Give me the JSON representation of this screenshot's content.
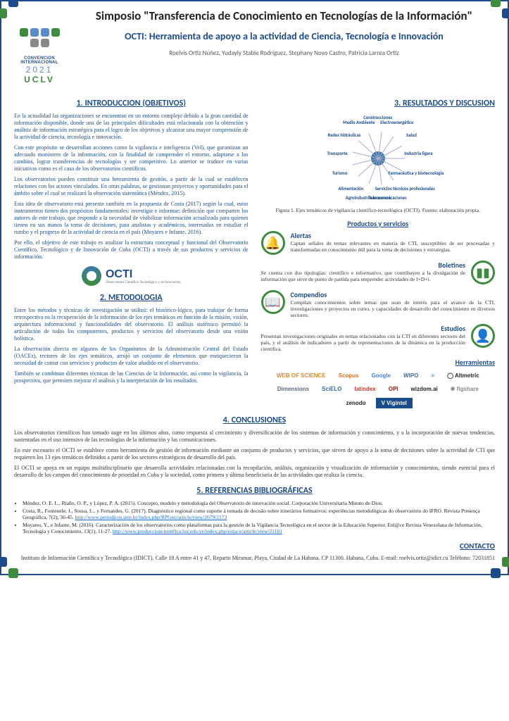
{
  "logo": {
    "conv_label": "CONVENCION\nINTERNACIONAL",
    "year": "2021",
    "acr": "UCLV",
    "colors": [
      "#3d8b3d",
      "#5a8cc7",
      "#3d8b3d",
      "#5a8cc7",
      "#888",
      "#888"
    ]
  },
  "title": "Simposio \"Transferencia de Conocimiento en Tecnologías de la Información\"",
  "subtitle": "OCTI: Herramienta de apoyo a la actividad de Ciencia, Tecnología e Innovación",
  "authors": "Roelvis Ortiz Núñez, Yudayly Stable Rodríguez, Stephany Novo Castro, Patricia Larrea Ortiz",
  "sections": {
    "intro_title": "1. INTRODUCCION (OBJETIVOS)",
    "intro_paras": [
      "En la actualidad las organizaciones se encuentran en un entorno complejo debido a la gran cantidad de información disponible, donde una de las principales dificultades está relacionada con la obtención y análisis de información estratégica para el logro de los objetivos y alcanzar una mayor comprensión de la actividad de ciencia, tecnología e innovación.",
      "Con este propósito se desarrollan acciones como la vigilancia e inteligencia (VeI), que garantizan un adecuado monitoreo de la información, con la finalidad de comprender el entorno, adaptarse a los cambios, lograr transferencias de tecnologías y ser competitivo. Lo anterior se traduce en varias iniciativas como es el caso de los observatorios científicos.",
      "Los observatorios pueden constituir una herramienta de gestión, a partir de la cual se establecen relaciones con los actores vinculados. En otras palabras, se gestionan proyectos y oportunidades para el ámbito sobre el cual se realizará la observación sistemática (Méndez, 2015).",
      "Esta idea de observatorio está presente también en la propuesta de Costa (2017) según la cual, estos instrumentos tienen dos propósitos fundamentales: investigar e informar; definición que comparten los autores de este trabajo, que responde a la necesidad de visibilizar información actualizada para quienes tienen en sus manos la toma de decisiones, para analistas y académicos, interesados en estudiar el rumbo y el progreso de la actividad de ciencia en el país (Moyares e Infante, 2016).",
      "Por ello, el objetivo de este trabajo es analizar la estructura conceptual y funcional del Observatorio Científico, Tecnológico y de Innovación de Cuba (OCTI) a través de sus productos y servicios de información."
    ],
    "octi_label": "OCTI",
    "octi_sublabel": "Observatorio Científico\nTecnológico y de Innovación",
    "metod_title": "2. METODOLOGIA",
    "metod_paras": [
      "Entre los métodos y técnicas de investigación se utilizó: el histórico-lógico, para trabajar de forma retrospectiva en la recuperación de la información de los ejes temáticos en función de la misión, visión, arquitectura informacional y funcionalidades del observatorio. El análisis sistémico permitió la articulación de todos los componentes, productos y servicios del observatorio desde una visión holística.",
      "La observación directa en algunos de los Organismos de la Administración Central del Estado (OACEs), rectores de los ejes temáticos, arrojó un conjunto de elementos que enriquecieron la necesidad de contar con servicios y productos de valor añadido en el observatorio.",
      "También se combinan diferentes técnicas de las Ciencias de la Información, así como la vigilancia, la prospectiva, que permiten mejorar el análisis y la interpretación de los resultados."
    ],
    "result_title": "3. RESULTADOS Y DISCUSION",
    "wheel_labels": [
      "Construcciones",
      "Electroenergético",
      "Salud",
      "Industria ligera",
      "Farmacéutica y biotecnología",
      "Servicios técnicos profesionales",
      "Telecomunicaciones",
      "Agroindustria azucarera",
      "Alimentación",
      "Turismo",
      "Transporte",
      "Redes hidráulicas",
      "Medio Ambiente"
    ],
    "fig_caption": "Figura 1. Ejes temáticos de vigilancia científico-tecnológica (OCTI). Fuente: elaboración propia.",
    "prod_title": "Productos y servicios",
    "products": [
      {
        "title": "Alertas",
        "icon": "🔔",
        "text": "Captan señales de temas relevantes en materia de CTI, susceptibles de ser procesadas y transformadas en conocimiento útil para la toma de decisiones y estrategias."
      },
      {
        "title": "Boletines",
        "icon": "▮▮",
        "text": "Se cuenta con dos tipologías: científico e informativo, que contribuyen a la divulgación de información que sirve de punto de partida para emprender actividades de I+D+i."
      },
      {
        "title": "Compendios",
        "icon": "📖",
        "text": "Compilan conocimientos sobre temas que sean de interés para el avance de la CTI, investigaciones y proyectos en curso, y capacidades de desarrollo del conocimiento en diversos sectores."
      },
      {
        "title": "Estudios",
        "icon": "👤",
        "text": "Presentan investigaciones originales en temas relacionados con la CTI en diferentes sectores del país, y el análisis de indicadores a partir de representaciones de la dinámica en la producción científica."
      }
    ],
    "tools_title": "Herramientas",
    "tools": [
      {
        "name": "WEB OF SCIENCE",
        "color": "#d98b2e"
      },
      {
        "name": "Scopus",
        "color": "#e36e1a"
      },
      {
        "name": "Google",
        "color": "#4285f4"
      },
      {
        "name": "WIPO",
        "color": "#3a6ea5"
      },
      {
        "name": "≡",
        "color": "#3a7aa8"
      },
      {
        "name": "◯ Altmetric",
        "color": "#222"
      },
      {
        "name": "Dimensions",
        "color": "#5d6d7e"
      },
      {
        "name": "SciELO",
        "color": "#3a6ea5"
      },
      {
        "name": "latindex",
        "color": "#c0392b"
      },
      {
        "name": "OPI",
        "color": "#8b1a1a"
      },
      {
        "name": "wizdom.ai",
        "color": "#222"
      },
      {
        "name": "❋ figshare",
        "color": "#888"
      },
      {
        "name": "zenodo",
        "color": "#222"
      },
      {
        "name": "V Vigintel",
        "color": "#fff",
        "bg": "#1a4b8c"
      }
    ],
    "concl_title": "4. CONCLUSIONES",
    "concl_paras": [
      "Los observatorios científicos han tomado auge en los últimos años, como respuesta al crecimiento y diversificación de los sistemas de información y conocimiento, y a la incorporación de nuevas tendencias, sustentadas en el uso intensivo de las tecnologías de la información y las comunicaciones.",
      "En este escenario el OCTI se establece como herramienta de gestión de información mediante un conjunto de productos y servicios, que sirven de apoyo a la toma de decisiones sobre la actividad de CTI que requieren los 13 ejes temáticos definidos a partir de los sectores estratégicos de desarrollo del país.",
      "El OCTI se apoya en un equipo multidisciplinario que desarrolla actividades relacionadas con la recopilación, análisis, organización y visualización de información y conocimientos, siendo esencial para el desarrollo de los campos del conocimiento de prioridad en Cuba y la sociedad, como primera y última beneficiaria de las actividades que realiza la ciencia."
    ],
    "refs_title": "5. REFERENCIAS BIBLIOGRÁFICAS",
    "refs": [
      "Méndez, O. E. L., Riaño, O. P., y López, P. A. (2015). Concepto, modelo y metodología del Observatorio de innovación social. Corporación Universitaria Minuto de Dios.",
      "Costa, R., Fontenele, J., Sousa, L., y Fernandes, G. (2017). Diagnóstico regional como suporte á tomada de decisão sobre itinerários formativos: experiências metodológicas do observatório do IFRO. Revista Presença Geográfica, 7(2), 36-45. http://www.periodicos.unir.br/index.php/RPGeo/article/view/2679/2173",
      "Moyares, Y., e Infante, M. (2016). Caracterización de los observatorios como plataformas para la gestión de la Vigilancia Tecnológica en el sector de la Educación Superior. Enl@ce Revista Venezolana de Información, Tecnología y Conocimiento, 13(1), 11-27. http://www.produccioncientifica.luz.edu.ve/index.php/enlace/article/view/21101"
    ],
    "contact_title": "CONTACTO",
    "contact": "Instituto de Información Científica y Tecnológica (IDICT). Calle 18 A entre 41 y 47, Reparto Miramar, Playa, Ciudad de La Habana. CP 11300. Habana, Cuba. E-mail: roelvis.ortiz@idict.cu Teléfono: 72031851"
  },
  "colors": {
    "primary": "#1a4b8c",
    "green": "#3d8b3d"
  }
}
